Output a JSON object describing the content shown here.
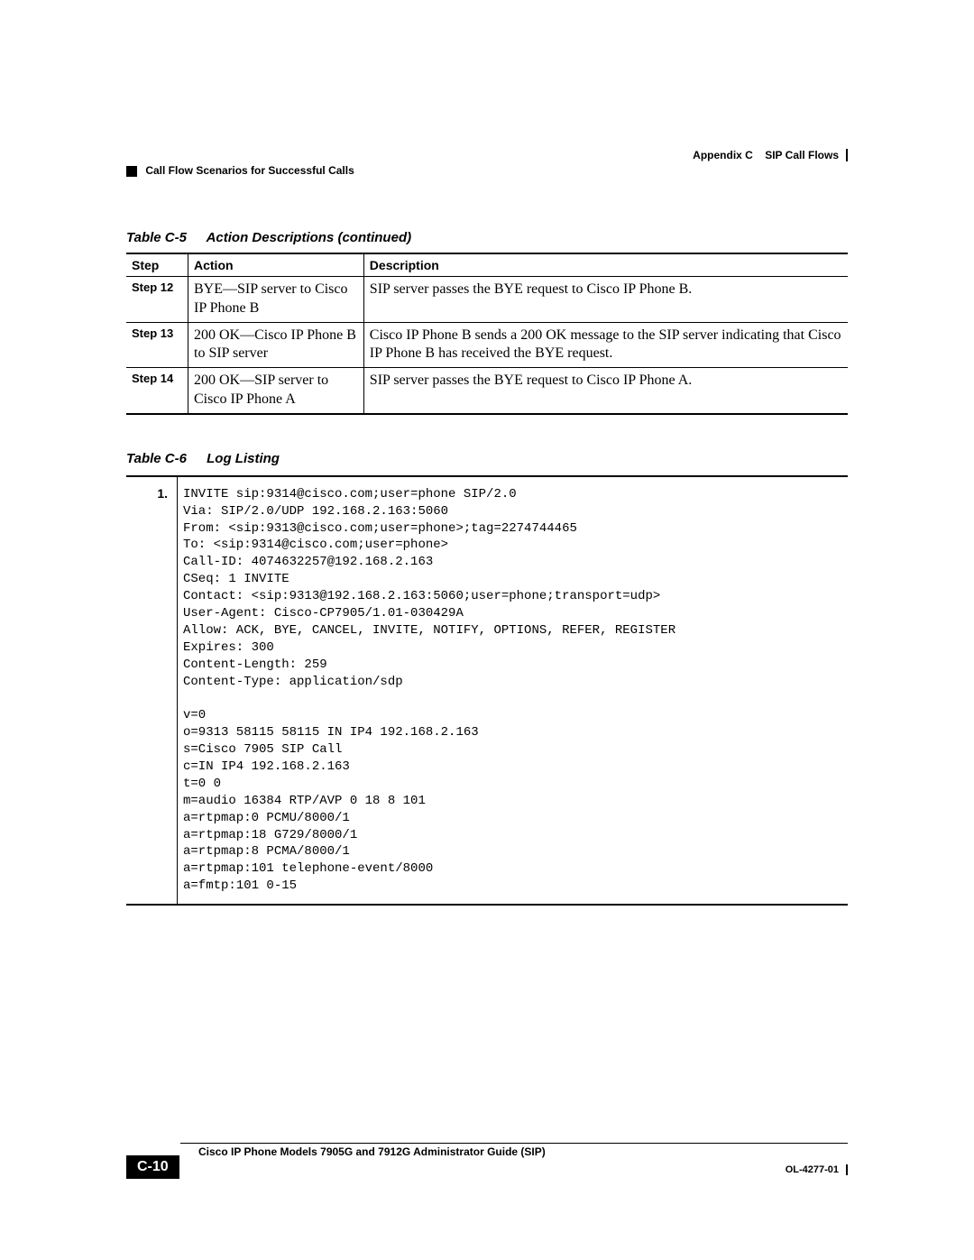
{
  "header": {
    "appendix": "Appendix C",
    "title": "SIP Call Flows",
    "section": "Call Flow Scenarios for Successful Calls"
  },
  "table_c5": {
    "label_num": "Table C-5",
    "label_text": "Action Descriptions (continued)",
    "columns": [
      "Step",
      "Action",
      "Description"
    ],
    "rows": [
      {
        "step": "Step 12",
        "action": "BYE—SIP server to Cisco IP Phone B",
        "description": "SIP server passes the BYE request to Cisco IP Phone B."
      },
      {
        "step": "Step 13",
        "action": "200 OK—Cisco IP Phone B to SIP server",
        "description": "Cisco IP Phone B sends a 200 OK message to the SIP server indicating that Cisco IP Phone B has received the BYE request."
      },
      {
        "step": "Step 14",
        "action": "200 OK—SIP server to Cisco IP Phone A",
        "description": "SIP server passes the BYE request to Cisco IP Phone A."
      }
    ]
  },
  "table_c6": {
    "label_num": "Table C-6",
    "label_text": "Log Listing",
    "entry_num": "1.",
    "log": "INVITE sip:9314@cisco.com;user=phone SIP/2.0\nVia: SIP/2.0/UDP 192.168.2.163:5060\nFrom: <sip:9313@cisco.com;user=phone>;tag=2274744465\nTo: <sip:9314@cisco.com;user=phone>\nCall-ID: 4074632257@192.168.2.163\nCSeq: 1 INVITE\nContact: <sip:9313@192.168.2.163:5060;user=phone;transport=udp>\nUser-Agent: Cisco-CP7905/1.01-030429A\nAllow: ACK, BYE, CANCEL, INVITE, NOTIFY, OPTIONS, REFER, REGISTER\nExpires: 300\nContent-Length: 259\nContent-Type: application/sdp\n\nv=0\no=9313 58115 58115 IN IP4 192.168.2.163\ns=Cisco 7905 SIP Call\nc=IN IP4 192.168.2.163\nt=0 0\nm=audio 16384 RTP/AVP 0 18 8 101\na=rtpmap:0 PCMU/8000/1\na=rtpmap:18 G729/8000/1\na=rtpmap:8 PCMA/8000/1\na=rtpmap:101 telephone-event/8000\na=fmtp:101 0-15"
  },
  "footer": {
    "doc_title": "Cisco IP Phone Models 7905G and 7912G Administrator Guide (SIP)",
    "page_num": "C-10",
    "doc_id": "OL-4277-01"
  }
}
